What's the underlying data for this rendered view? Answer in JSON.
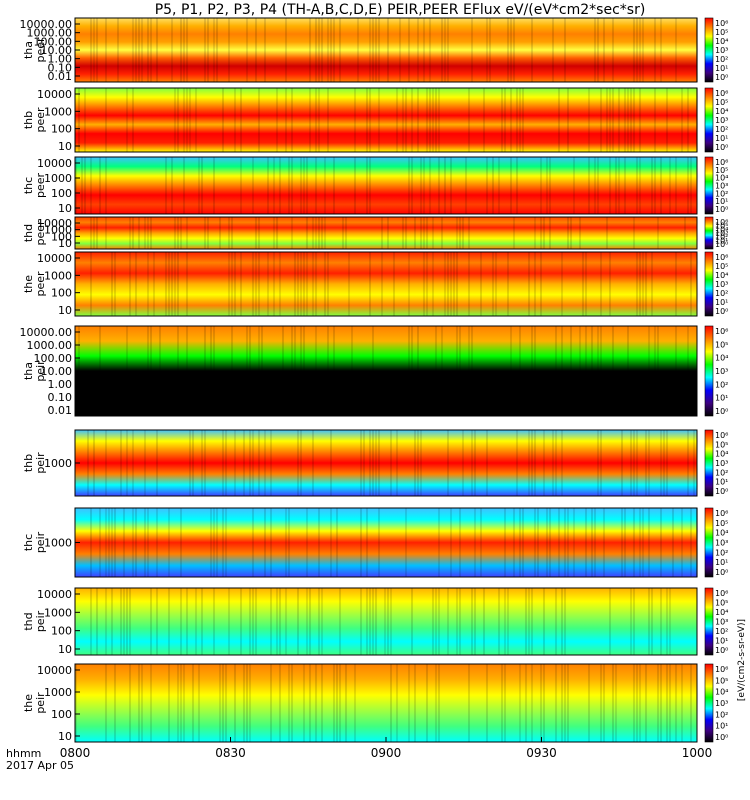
{
  "title": "P5, P1, P2, P3, P4 (TH-A,B,C,D,E) PEIR,PEER EFlux eV/(eV*cm2*sec*sr)",
  "colorbar_label": "[eV/(cm2-s-sr-eV)]",
  "chart_data": {
    "type": "heatmap",
    "x_axis": {
      "ticks": [
        "0800",
        "0830",
        "0900",
        "0930",
        "1000"
      ],
      "corner_label_line1": "hhmm",
      "corner_label_line2": "2017 Apr 05"
    },
    "colorbar_ticks": [
      "10⁶",
      "10⁵",
      "10⁴",
      "10³",
      "10²",
      "10¹",
      "10⁰"
    ],
    "colors": [
      "#000000",
      "#3d0080",
      "#0000ff",
      "#00ffff",
      "#00ff00",
      "#ffff00",
      "#ff8000",
      "#ff0000"
    ],
    "panels": [
      {
        "label": [
          "tha",
          "peer"
        ],
        "yticks": [
          "10000.00",
          "1000.00",
          "100.00",
          "10.00",
          "1.00",
          "0.10",
          "0.01"
        ]
      },
      {
        "label": [
          "thb",
          "peer"
        ],
        "yticks": [
          "10000",
          "1000",
          "100",
          "10"
        ]
      },
      {
        "label": [
          "thc",
          "peer"
        ],
        "yticks": [
          "10000",
          "1000",
          "100",
          "10"
        ]
      },
      {
        "label": [
          "thd",
          "peer"
        ],
        "yticks": [
          "10000",
          "1000",
          "100",
          "10"
        ]
      },
      {
        "label": [
          "the",
          "peer"
        ],
        "yticks": [
          "10000",
          "1000",
          "100",
          "10"
        ]
      },
      {
        "label": [
          "tha",
          "peir"
        ],
        "yticks": [
          "10000.00",
          "1000.00",
          "100.00",
          "10.00",
          "1.00",
          "0.10",
          "0.01"
        ]
      },
      {
        "label": [
          "thb",
          "peir"
        ],
        "yticks": [
          "1000"
        ]
      },
      {
        "label": [
          "thc",
          "peir"
        ],
        "yticks": [
          "1000"
        ]
      },
      {
        "label": [
          "thd",
          "peir"
        ],
        "yticks": [
          "10000",
          "1000",
          "100",
          "10"
        ]
      },
      {
        "label": [
          "the",
          "peir"
        ],
        "yticks": [
          "10000",
          "1000",
          "100",
          "10"
        ]
      }
    ]
  }
}
